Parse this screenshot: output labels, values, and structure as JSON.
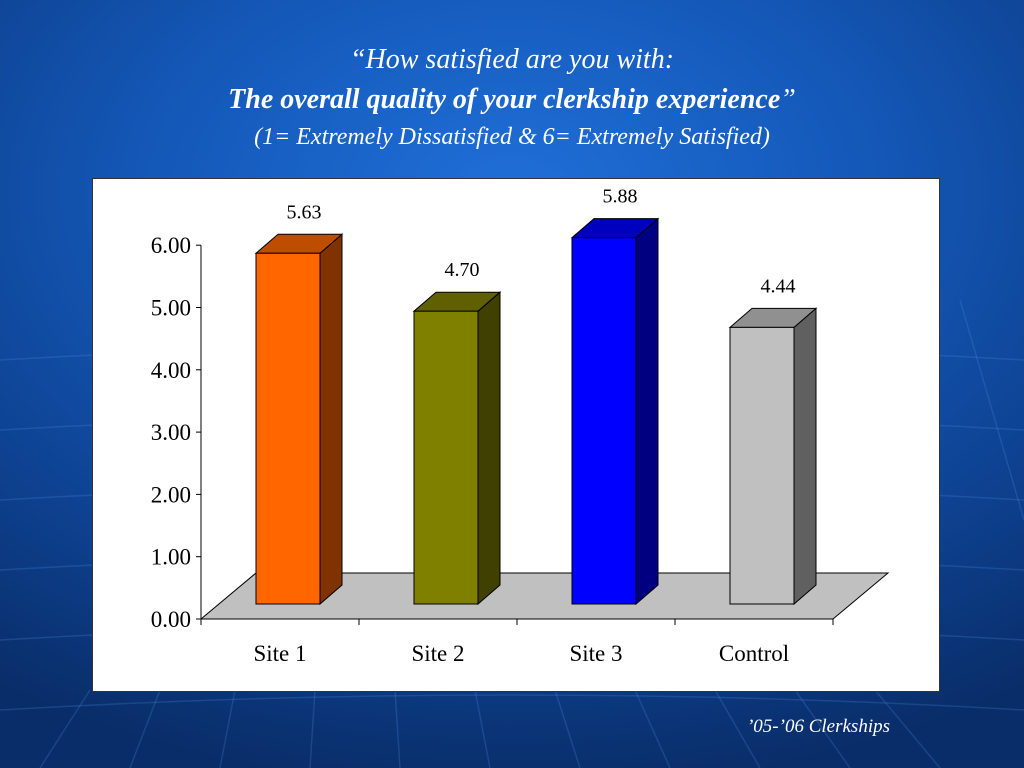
{
  "slide": {
    "title_line1": "“How satisfied are you with:",
    "title_line2": "The overall quality of your clerkship experience",
    "title_line2_close": "”",
    "title_line3": "(1= Extremely Dissatisfied & 6= Extremely Satisfied)",
    "footer": "’05-’06 Clerkships"
  },
  "chart_data": {
    "type": "bar",
    "categories": [
      "Site 1",
      "Site 2",
      "Site 3",
      "Control"
    ],
    "values": [
      5.63,
      4.7,
      5.88,
      4.44
    ],
    "data_labels": [
      "5.63",
      "4.70",
      "5.88",
      "4.44"
    ],
    "colors": [
      "#ff6600",
      "#808000",
      "#0000ff",
      "#c0c0c0"
    ],
    "y_ticks": [
      "0.00",
      "1.00",
      "2.00",
      "3.00",
      "4.00",
      "5.00",
      "6.00"
    ],
    "ylim": [
      0,
      6
    ],
    "grid": false,
    "style": "3d-column"
  }
}
